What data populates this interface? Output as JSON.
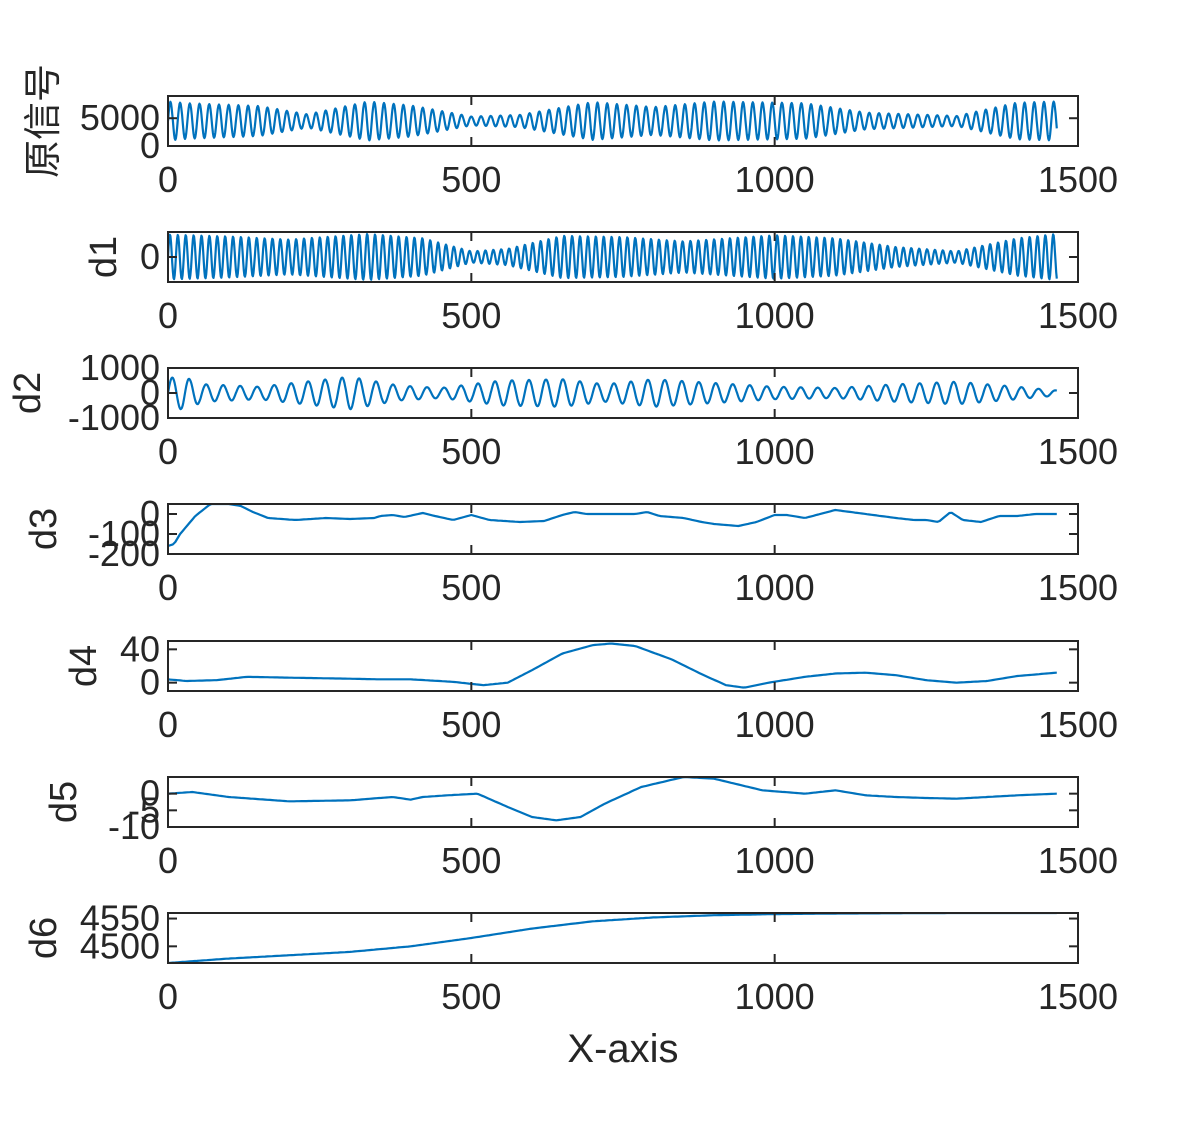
{
  "chart_data": {
    "type": "line",
    "xlabel": "X-axis",
    "line_color": "#0072BD",
    "x_range": [
      0,
      1500
    ],
    "x_ticks": [
      0,
      500,
      1000,
      1500
    ],
    "x_tick_labels": [
      "0",
      "500",
      "1000",
      "1500"
    ],
    "subplots": [
      {
        "ylabel": "原信号",
        "ylim": [
          0,
          9000
        ],
        "y_ticks": [
          0,
          5000
        ],
        "y_tick_labels": [
          "0",
          "5000"
        ],
        "signal": {
          "kind": "oscillation",
          "x_end": 1465,
          "offset": 4500,
          "period": 16,
          "amplitude_envelope": [
            [
              0,
              3500
            ],
            [
              30,
              3200
            ],
            [
              150,
              2700
            ],
            [
              230,
              1200
            ],
            [
              330,
              3500
            ],
            [
              400,
              2800
            ],
            [
              500,
              800
            ],
            [
              580,
              1100
            ],
            [
              700,
              3400
            ],
            [
              800,
              2500
            ],
            [
              900,
              3500
            ],
            [
              1050,
              3200
            ],
            [
              1150,
              1500
            ],
            [
              1300,
              900
            ],
            [
              1400,
              3300
            ],
            [
              1465,
              3500
            ]
          ]
        }
      },
      {
        "ylabel": "d1",
        "ylim": [
          -2000,
          2000
        ],
        "y_ticks": [
          0
        ],
        "y_tick_labels": [
          "0"
        ],
        "signal": {
          "kind": "oscillation",
          "x_end": 1465,
          "offset": 0,
          "period": 13,
          "amplitude_envelope": [
            [
              0,
              1800
            ],
            [
              100,
              1650
            ],
            [
              200,
              1400
            ],
            [
              330,
              1850
            ],
            [
              420,
              1500
            ],
            [
              500,
              450
            ],
            [
              560,
              650
            ],
            [
              650,
              1700
            ],
            [
              750,
              1600
            ],
            [
              850,
              1250
            ],
            [
              1000,
              1750
            ],
            [
              1100,
              1500
            ],
            [
              1200,
              800
            ],
            [
              1300,
              450
            ],
            [
              1400,
              1500
            ],
            [
              1465,
              1850
            ]
          ]
        }
      },
      {
        "ylabel": "d2",
        "ylim": [
          -1000,
          1000
        ],
        "y_ticks": [
          -1000,
          0,
          1000
        ],
        "y_tick_labels": [
          "-1000",
          "0",
          "1000"
        ],
        "signal": {
          "kind": "oscillation",
          "x_end": 1465,
          "offset": 0,
          "period": 28,
          "amplitude_envelope": [
            [
              0,
              600
            ],
            [
              25,
              650
            ],
            [
              60,
              350
            ],
            [
              150,
              250
            ],
            [
              300,
              650
            ],
            [
              380,
              300
            ],
            [
              450,
              200
            ],
            [
              550,
              500
            ],
            [
              650,
              550
            ],
            [
              720,
              350
            ],
            [
              800,
              550
            ],
            [
              1000,
              250
            ],
            [
              1100,
              200
            ],
            [
              1200,
              350
            ],
            [
              1300,
              450
            ],
            [
              1400,
              250
            ],
            [
              1465,
              100
            ]
          ]
        }
      },
      {
        "ylabel": "d3",
        "ylim": [
          -200,
          50
        ],
        "y_ticks": [
          -200,
          -100,
          0
        ],
        "y_tick_labels": [
          "-200",
          "-100",
          "0"
        ],
        "signal": {
          "kind": "points",
          "points": [
            [
              0,
              -160
            ],
            [
              10,
              -150
            ],
            [
              20,
              -100
            ],
            [
              45,
              -10
            ],
            [
              70,
              50
            ],
            [
              100,
              50
            ],
            [
              120,
              40
            ],
            [
              140,
              10
            ],
            [
              165,
              -20
            ],
            [
              210,
              -30
            ],
            [
              260,
              -20
            ],
            [
              300,
              -25
            ],
            [
              340,
              -20
            ],
            [
              350,
              -10
            ],
            [
              370,
              -5
            ],
            [
              390,
              -15
            ],
            [
              420,
              5
            ],
            [
              440,
              -10
            ],
            [
              470,
              -30
            ],
            [
              500,
              -5
            ],
            [
              530,
              -30
            ],
            [
              580,
              -40
            ],
            [
              620,
              -35
            ],
            [
              650,
              -5
            ],
            [
              670,
              10
            ],
            [
              690,
              0
            ],
            [
              730,
              0
            ],
            [
              770,
              0
            ],
            [
              790,
              10
            ],
            [
              810,
              -10
            ],
            [
              850,
              -20
            ],
            [
              880,
              -40
            ],
            [
              900,
              -50
            ],
            [
              940,
              -60
            ],
            [
              970,
              -40
            ],
            [
              1000,
              -5
            ],
            [
              1020,
              -5
            ],
            [
              1050,
              -20
            ],
            [
              1100,
              20
            ],
            [
              1150,
              0
            ],
            [
              1200,
              -20
            ],
            [
              1230,
              -30
            ],
            [
              1250,
              -30
            ],
            [
              1270,
              -40
            ],
            [
              1290,
              10
            ],
            [
              1310,
              -30
            ],
            [
              1340,
              -40
            ],
            [
              1370,
              -10
            ],
            [
              1400,
              -10
            ],
            [
              1430,
              0
            ],
            [
              1465,
              0
            ]
          ]
        }
      },
      {
        "ylabel": "d4",
        "ylim": [
          -10,
          50
        ],
        "y_ticks": [
          0,
          40
        ],
        "y_tick_labels": [
          "0",
          "40"
        ],
        "signal": {
          "kind": "points",
          "points": [
            [
              0,
              4
            ],
            [
              30,
              2
            ],
            [
              80,
              3
            ],
            [
              130,
              7
            ],
            [
              200,
              6
            ],
            [
              280,
              5
            ],
            [
              350,
              4
            ],
            [
              400,
              4
            ],
            [
              470,
              1
            ],
            [
              520,
              -3
            ],
            [
              560,
              0
            ],
            [
              600,
              15
            ],
            [
              650,
              35
            ],
            [
              700,
              45
            ],
            [
              730,
              47
            ],
            [
              770,
              44
            ],
            [
              830,
              28
            ],
            [
              880,
              10
            ],
            [
              920,
              -3
            ],
            [
              950,
              -6
            ],
            [
              990,
              0
            ],
            [
              1050,
              7
            ],
            [
              1100,
              11
            ],
            [
              1150,
              12
            ],
            [
              1200,
              9
            ],
            [
              1250,
              3
            ],
            [
              1300,
              0
            ],
            [
              1350,
              2
            ],
            [
              1400,
              8
            ],
            [
              1465,
              12
            ]
          ]
        }
      },
      {
        "ylabel": "d5",
        "ylim": [
          -10,
          5
        ],
        "y_ticks": [
          -10,
          -5,
          0
        ],
        "y_tick_labels": [
          "-10",
          "-5",
          "0"
        ],
        "signal": {
          "kind": "points",
          "points": [
            [
              0,
              0
            ],
            [
              40,
              0.5
            ],
            [
              100,
              -1
            ],
            [
              200,
              -2.3
            ],
            [
              300,
              -2
            ],
            [
              370,
              -1
            ],
            [
              400,
              -1.8
            ],
            [
              420,
              -1
            ],
            [
              460,
              -0.5
            ],
            [
              510,
              0
            ],
            [
              560,
              -4
            ],
            [
              600,
              -7
            ],
            [
              640,
              -8
            ],
            [
              680,
              -7
            ],
            [
              720,
              -3
            ],
            [
              780,
              2
            ],
            [
              850,
              5
            ],
            [
              900,
              4.5
            ],
            [
              980,
              1
            ],
            [
              1050,
              0
            ],
            [
              1100,
              1
            ],
            [
              1150,
              -0.5
            ],
            [
              1200,
              -1
            ],
            [
              1250,
              -1.3
            ],
            [
              1300,
              -1.5
            ],
            [
              1350,
              -1
            ],
            [
              1400,
              -0.5
            ],
            [
              1465,
              0
            ]
          ]
        }
      },
      {
        "ylabel": "d6",
        "ylim": [
          4470,
          4560
        ],
        "y_ticks": [
          4500,
          4550
        ],
        "y_tick_labels": [
          "4500",
          "4550"
        ],
        "signal": {
          "kind": "points",
          "points": [
            [
              0,
              4470
            ],
            [
              100,
              4478
            ],
            [
              200,
              4484
            ],
            [
              300,
              4490
            ],
            [
              400,
              4500
            ],
            [
              500,
              4515
            ],
            [
              600,
              4532
            ],
            [
              700,
              4545
            ],
            [
              800,
              4552
            ],
            [
              900,
              4556
            ],
            [
              1000,
              4558
            ],
            [
              1100,
              4559
            ],
            [
              1200,
              4559.5
            ],
            [
              1300,
              4560
            ],
            [
              1465,
              4560
            ]
          ]
        }
      }
    ]
  }
}
